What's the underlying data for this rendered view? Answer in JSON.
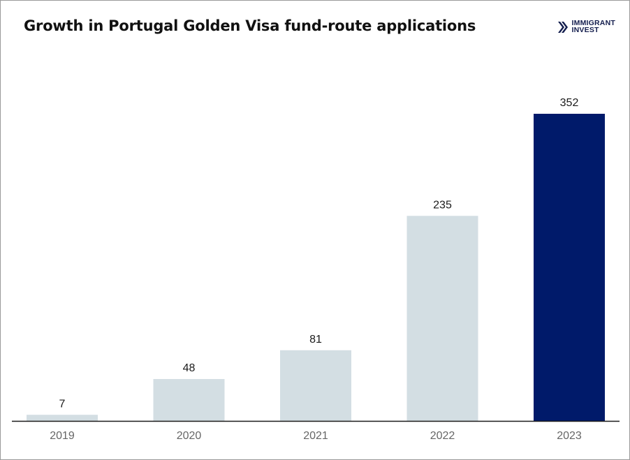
{
  "title": "Growth in Portugal Golden Visa fund-route applications",
  "logo": {
    "line1": "IMMIGRANT",
    "line2": "INVEST",
    "icon": "double-chevron-right-icon",
    "color": "#131d4d"
  },
  "chart_data": {
    "type": "bar",
    "title": "Growth in Portugal Golden Visa fund-route applications",
    "categories": [
      "2019",
      "2020",
      "2021",
      "2022",
      "2023"
    ],
    "values": [
      7,
      48,
      81,
      235,
      352
    ],
    "xlabel": "",
    "ylabel": "",
    "ylim": [
      0,
      352
    ],
    "grid": false,
    "legend": "none",
    "bar_colors": [
      "#d3dee3",
      "#d3dee3",
      "#d3dee3",
      "#d3dee3",
      "#001a6a"
    ],
    "axis_color": "#1a1a1a"
  }
}
